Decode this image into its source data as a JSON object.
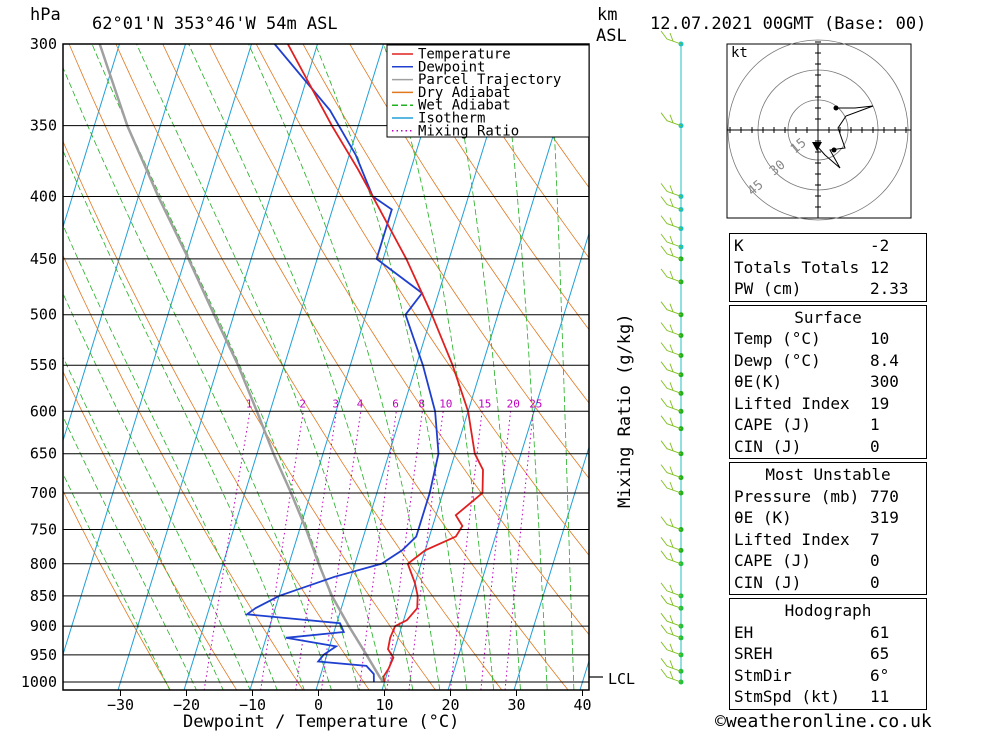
{
  "header": {
    "pressure_unit": "hPa",
    "location": "62°01'N  353°46'W  54m  ASL",
    "height_unit_km": "km",
    "height_unit_asl": "ASL",
    "datetime": "12.07.2021  00GMT  (Base: 00)"
  },
  "chart_data": {
    "type": "line",
    "subtype": "skew-T log-P sounding",
    "xlabel": "Dewpoint / Temperature (°C)",
    "ylabel": "hPa",
    "right_axis_label": "Mixing Ratio (g/kg)",
    "x_ticks": [
      -30,
      -20,
      -10,
      0,
      10,
      20,
      30,
      40
    ],
    "y_ticks": [
      300,
      350,
      400,
      450,
      500,
      550,
      600,
      650,
      700,
      750,
      800,
      850,
      900,
      950,
      1000
    ],
    "mixing_ratio_labels": [
      "1",
      "2",
      "3",
      "4",
      "6",
      "8",
      "10",
      "15",
      "20",
      "25"
    ],
    "mixing_ratio_values": [
      1,
      2,
      3,
      4,
      6,
      8,
      10,
      15,
      20,
      25
    ],
    "lcl_label": "LCL",
    "lcl_pressure": 990,
    "legend": [
      "Temperature",
      "Dewpoint",
      "Parcel Trajectory",
      "Dry Adiabat",
      "Wet Adiabat",
      "Isotherm",
      "Mixing Ratio"
    ],
    "series_colors": {
      "temperature": "#e02020",
      "dewpoint": "#1f3fcf",
      "parcel": "#a0a0a0",
      "dry_adiabat": "#e07820",
      "wet_adiabat": "#20b020",
      "isotherm": "#20a0d8",
      "mixing_ratio": "#c000c0"
    },
    "temperature": [
      [
        1000,
        10
      ],
      [
        990,
        9.6
      ],
      [
        975,
        10
      ],
      [
        955,
        10.2
      ],
      [
        940,
        9
      ],
      [
        920,
        8.8
      ],
      [
        900,
        9
      ],
      [
        890,
        10.5
      ],
      [
        870,
        11.5
      ],
      [
        850,
        11
      ],
      [
        830,
        10
      ],
      [
        800,
        8
      ],
      [
        780,
        10
      ],
      [
        760,
        14
      ],
      [
        745,
        14.5
      ],
      [
        730,
        13
      ],
      [
        700,
        16
      ],
      [
        670,
        15
      ],
      [
        650,
        13
      ],
      [
        600,
        10
      ],
      [
        550,
        5.5
      ],
      [
        500,
        0
      ],
      [
        450,
        -6.5
      ],
      [
        400,
        -14.5
      ],
      [
        380,
        -18
      ],
      [
        350,
        -24
      ],
      [
        300,
        -34.5
      ]
    ],
    "dewpoint": [
      [
        1000,
        8.4
      ],
      [
        985,
        8
      ],
      [
        970,
        6.5
      ],
      [
        962,
        -1
      ],
      [
        950,
        -0.5
      ],
      [
        935,
        1
      ],
      [
        920,
        -7
      ],
      [
        910,
        1.5
      ],
      [
        895,
        0.5
      ],
      [
        880,
        -14
      ],
      [
        870,
        -13
      ],
      [
        850,
        -10
      ],
      [
        820,
        -2.5
      ],
      [
        800,
        4
      ],
      [
        780,
        6.5
      ],
      [
        760,
        8
      ],
      [
        700,
        8
      ],
      [
        650,
        7.5
      ],
      [
        600,
        5
      ],
      [
        550,
        1
      ],
      [
        500,
        -4
      ],
      [
        480,
        -2.5
      ],
      [
        450,
        -11
      ],
      [
        410,
        -11
      ],
      [
        400,
        -14.5
      ],
      [
        370,
        -19
      ],
      [
        340,
        -25
      ],
      [
        300,
        -36.5
      ]
    ],
    "parcel": [
      [
        1000,
        9.8
      ],
      [
        990,
        9
      ],
      [
        950,
        6
      ],
      [
        900,
        2
      ],
      [
        850,
        -2
      ],
      [
        800,
        -5.5
      ],
      [
        750,
        -9
      ],
      [
        700,
        -13
      ],
      [
        650,
        -17.5
      ],
      [
        600,
        -22
      ],
      [
        550,
        -27
      ],
      [
        500,
        -33
      ],
      [
        450,
        -39.5
      ],
      [
        400,
        -47
      ],
      [
        350,
        -55
      ],
      [
        300,
        -63
      ]
    ]
  },
  "hodograph": {
    "unit": "kt",
    "ring_labels": [
      "15",
      "30",
      "45"
    ]
  },
  "indices": [
    {
      "rows": [
        {
          "k": "K",
          "v": "-2"
        },
        {
          "k": "Totals Totals",
          "v": "12"
        },
        {
          "k": "PW (cm)",
          "v": "2.33"
        }
      ]
    },
    {
      "title": "Surface",
      "rows": [
        {
          "k": "Temp (°C)",
          "v": "10"
        },
        {
          "k": "Dewp (°C)",
          "v": "8.4"
        },
        {
          "k": "θE(K)",
          "v": "300"
        },
        {
          "k": "Lifted Index",
          "v": "19"
        },
        {
          "k": "CAPE (J)",
          "v": "1"
        },
        {
          "k": "CIN (J)",
          "v": "0"
        }
      ]
    },
    {
      "title": "Most Unstable",
      "rows": [
        {
          "k": "Pressure (mb)",
          "v": "770"
        },
        {
          "k": "θE (K)",
          "v": "319"
        },
        {
          "k": "Lifted Index",
          "v": "7"
        },
        {
          "k": "CAPE (J)",
          "v": "0"
        },
        {
          "k": "CIN (J)",
          "v": "0"
        }
      ]
    },
    {
      "title": "Hodograph",
      "rows": [
        {
          "k": "EH",
          "v": "61"
        },
        {
          "k": "SREH",
          "v": "65"
        },
        {
          "k": "StmDir",
          "v": "6°"
        },
        {
          "k": "StmSpd (kt)",
          "v": "11"
        }
      ]
    }
  ],
  "credit": "©weatheronline.co.uk"
}
